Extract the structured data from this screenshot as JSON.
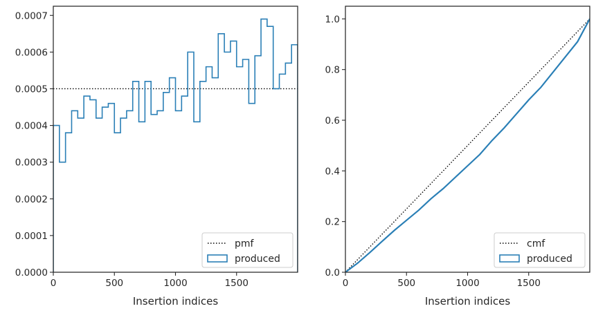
{
  "chart_data": [
    {
      "type": "line",
      "step": true,
      "xlabel": "Insertion indices",
      "ylabel": "",
      "xlim": [
        0,
        2000
      ],
      "ylim": [
        0,
        0.000725
      ],
      "xticks": [
        0,
        500,
        1000,
        1500
      ],
      "xtick_labels": [
        "0",
        "500",
        "1000",
        "1500"
      ],
      "yticks": [
        0,
        0.0001,
        0.0002,
        0.0003,
        0.0004,
        0.0005,
        0.0006,
        0.0007
      ],
      "ytick_labels": [
        "0.0000",
        "0.0001",
        "0.0002",
        "0.0003",
        "0.0004",
        "0.0005",
        "0.0006",
        "0.0007"
      ],
      "grid": false,
      "legend": {
        "placement": "lower-right",
        "entries": [
          "pmf",
          "produced"
        ]
      },
      "series": [
        {
          "name": "pmf",
          "style": "dotted",
          "color": "#000000",
          "x": [
            0,
            2000
          ],
          "y": [
            0.0005,
            0.0005
          ]
        },
        {
          "name": "produced",
          "style": "step",
          "color": "#2a7fb6",
          "bin_edges": [
            0,
            50,
            100,
            150,
            200,
            250,
            300,
            350,
            400,
            450,
            500,
            550,
            600,
            650,
            700,
            750,
            800,
            850,
            900,
            950,
            1000,
            1050,
            1100,
            1150,
            1200,
            1250,
            1300,
            1350,
            1400,
            1450,
            1500,
            1550,
            1600,
            1650,
            1700,
            1750,
            1800,
            1850,
            1900,
            1950,
            2000
          ],
          "values": [
            0.0004,
            0.0003,
            0.00038,
            0.00044,
            0.00042,
            0.00048,
            0.00047,
            0.00042,
            0.00045,
            0.00046,
            0.00038,
            0.00042,
            0.00044,
            0.00052,
            0.00041,
            0.00052,
            0.00043,
            0.00044,
            0.00049,
            0.00053,
            0.00044,
            0.00048,
            0.0006,
            0.00041,
            0.00052,
            0.00056,
            0.00053,
            0.00065,
            0.0006,
            0.00063,
            0.00056,
            0.00058,
            0.00046,
            0.00059,
            0.00069,
            0.00067,
            0.0005,
            0.00054,
            0.00057,
            0.00062
          ]
        }
      ]
    },
    {
      "type": "line",
      "xlabel": "Insertion indices",
      "ylabel": "",
      "xlim": [
        0,
        2000
      ],
      "ylim": [
        0,
        1.05
      ],
      "xticks": [
        0,
        500,
        1000,
        1500
      ],
      "xtick_labels": [
        "0",
        "500",
        "1000",
        "1500"
      ],
      "yticks": [
        0,
        0.2,
        0.4,
        0.6,
        0.8,
        1.0
      ],
      "ytick_labels": [
        "0.0",
        "0.2",
        "0.4",
        "0.6",
        "0.8",
        "1.0"
      ],
      "grid": false,
      "legend": {
        "placement": "lower-right",
        "entries": [
          "cmf",
          "produced"
        ]
      },
      "series": [
        {
          "name": "cmf",
          "style": "dotted",
          "color": "#000000",
          "x": [
            0,
            2000
          ],
          "y": [
            0,
            1
          ]
        },
        {
          "name": "produced",
          "style": "line",
          "color": "#2a7fb6",
          "x": [
            0,
            100,
            200,
            300,
            400,
            500,
            600,
            700,
            800,
            900,
            1000,
            1100,
            1200,
            1300,
            1400,
            1500,
            1600,
            1700,
            1800,
            1900,
            2000
          ],
          "y": [
            0,
            0.036,
            0.078,
            0.122,
            0.165,
            0.205,
            0.245,
            0.29,
            0.33,
            0.375,
            0.42,
            0.465,
            0.52,
            0.57,
            0.625,
            0.68,
            0.73,
            0.79,
            0.85,
            0.91,
            1.0
          ]
        }
      ]
    }
  ]
}
